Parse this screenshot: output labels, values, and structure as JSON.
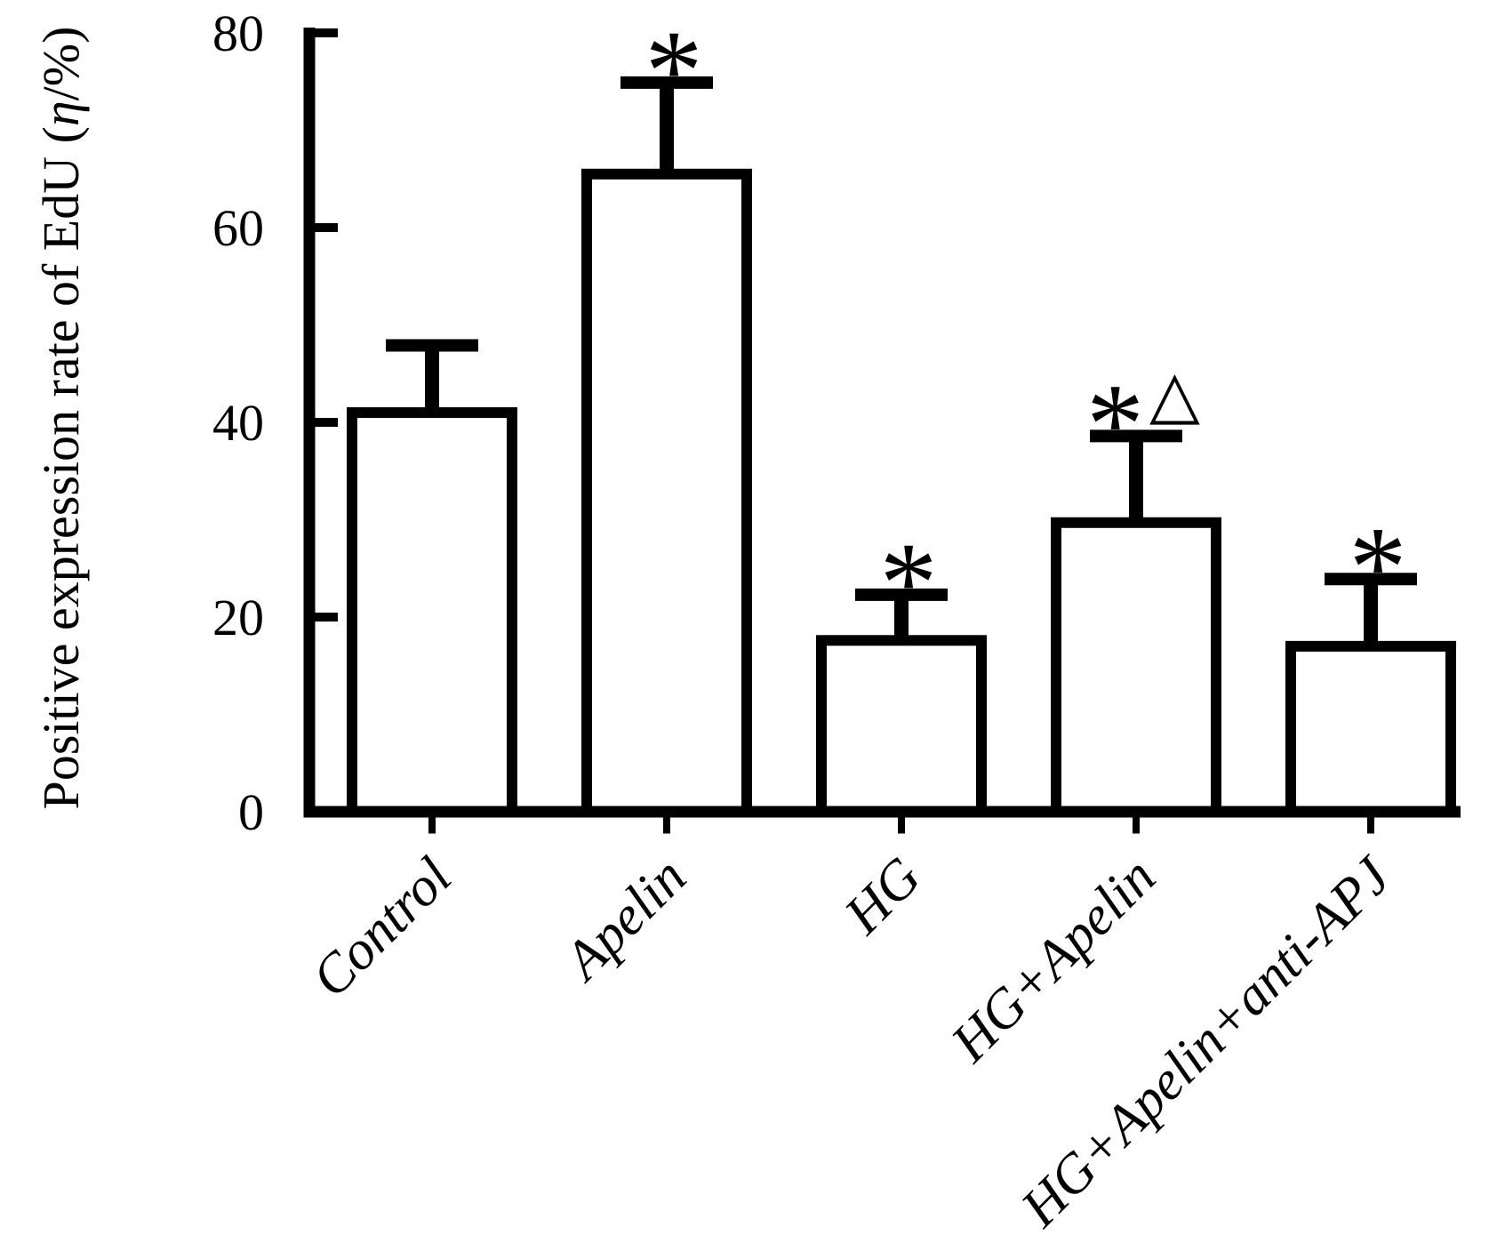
{
  "figure": {
    "background": "#ffffff",
    "ink": "#000000"
  },
  "chart_data": {
    "type": "bar",
    "title": "",
    "xlabel": "",
    "ylabel": "Positive expression rate of EdU (η/%)",
    "ylim": [
      0,
      80
    ],
    "ytick_values": [
      0,
      20,
      40,
      60,
      80
    ],
    "ytick_labels": [
      "0",
      "20",
      "40",
      "60",
      "80"
    ],
    "categories": [
      "Control",
      "Apelin",
      "HG",
      "HG+Apelin",
      "HG+Apelin+anti-APJ"
    ],
    "values": [
      41,
      65.5,
      17.6,
      29.7,
      17
    ],
    "error_plus": [
      6.9,
      9.4,
      4.7,
      8.9,
      6.9
    ],
    "annotations": [
      "",
      "*",
      "*",
      "*△",
      "*"
    ],
    "annotation_symbols": {
      "asterisk": "*",
      "triangle": "△"
    },
    "bar_fill": "#ffffff",
    "bar_stroke": "#000000",
    "error_bar_style": "cap-above-only",
    "grid": false,
    "legend_position": "none",
    "x_label_rotation_deg": -45
  }
}
